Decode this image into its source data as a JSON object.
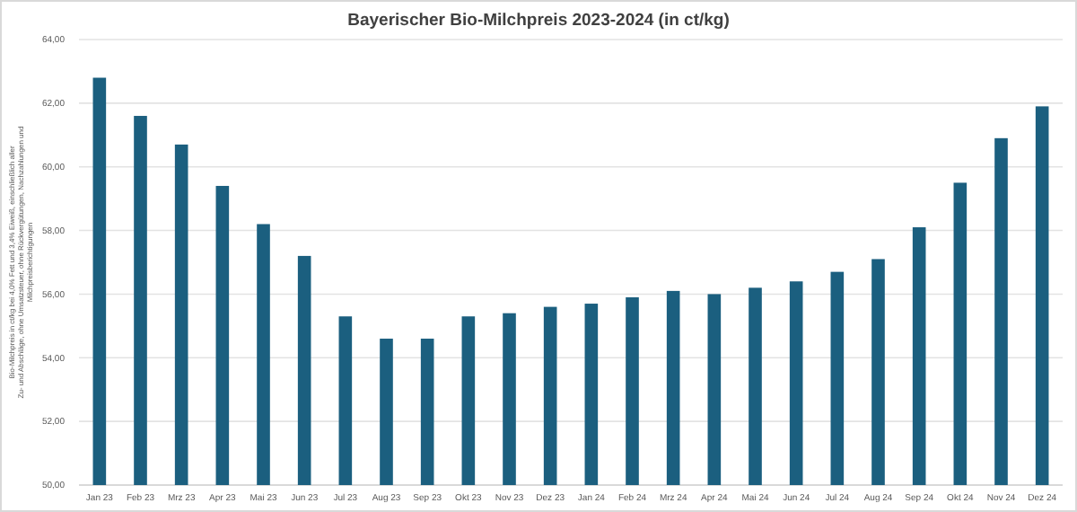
{
  "chart_data": {
    "type": "bar",
    "title": "Bayerischer Bio-Milchpreis 2023-2024 (in ct/kg)",
    "ylabel": "Bio-Milchpreis in ct/kg bei 4,0% Fett und 3,4% Eiweiß, einschließlich aller Zu- und Abschläge, ohne Umsatzsteuer, ohne Rückvergütungen, Nachzahlungen und Milchpreisberichtigungen",
    "categories": [
      "Jan 23",
      "Feb 23",
      "Mrz 23",
      "Apr 23",
      "Mai 23",
      "Jun 23",
      "Jul 23",
      "Aug 23",
      "Sep 23",
      "Okt 23",
      "Nov 23",
      "Dez 23",
      "Jan 24",
      "Feb 24",
      "Mrz 24",
      "Apr 24",
      "Mai 24",
      "Jun 24",
      "Jul 24",
      "Aug 24",
      "Sep 24",
      "Okt 24",
      "Nov 24",
      "Dez 24"
    ],
    "values": [
      62.8,
      61.6,
      60.7,
      59.4,
      58.2,
      57.2,
      55.3,
      54.6,
      54.6,
      55.3,
      55.4,
      55.6,
      55.7,
      55.9,
      56.1,
      56.0,
      56.2,
      56.4,
      56.7,
      57.1,
      58.1,
      59.5,
      60.9,
      61.9
    ],
    "color": "#1b5f7f",
    "ylim": [
      50,
      64
    ],
    "yticks": [
      {
        "value": 50,
        "label": "50,00"
      },
      {
        "value": 52,
        "label": "52,00"
      },
      {
        "value": 54,
        "label": "54,00"
      },
      {
        "value": 56,
        "label": "56,00"
      },
      {
        "value": 58,
        "label": "58,00"
      },
      {
        "value": 60,
        "label": "60,00"
      },
      {
        "value": 62,
        "label": "62,00"
      },
      {
        "value": 64,
        "label": "64,00"
      }
    ],
    "grid": "y"
  }
}
